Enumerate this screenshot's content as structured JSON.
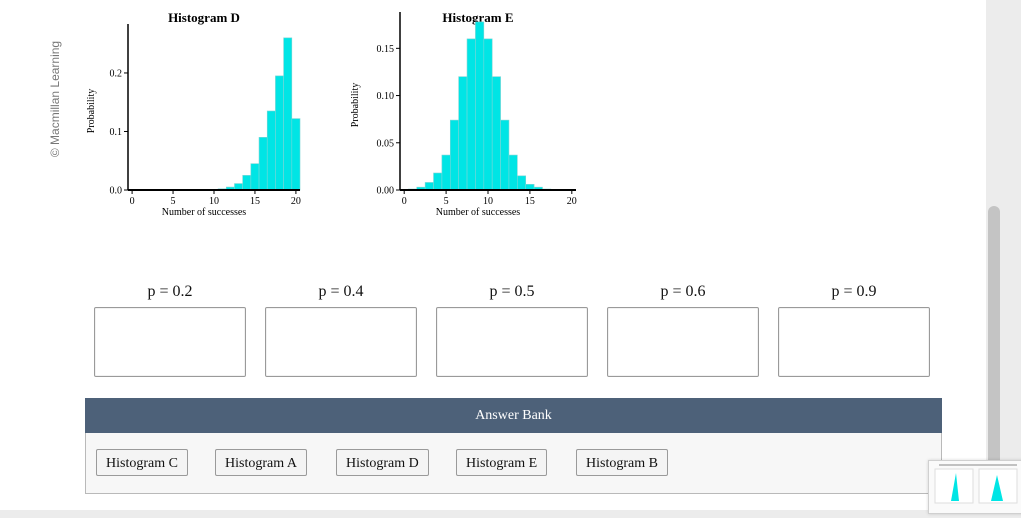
{
  "credit": "© Macmillan Learning",
  "histograms": [
    {
      "title": "Histogram D",
      "ylabel": "Probability",
      "xlabel": "Number of successes",
      "yticks": [
        "0.0",
        "0.1",
        "0.2"
      ],
      "xticks": [
        "0",
        "5",
        "10",
        "15",
        "20"
      ],
      "chart_data": {
        "type": "bar",
        "title": "Histogram D",
        "xlabel": "Number of successes",
        "ylabel": "Probability",
        "x": [
          10,
          11,
          12,
          13,
          14,
          15,
          16,
          17,
          18,
          19,
          20
        ],
        "values": [
          0.001,
          0.002,
          0.005,
          0.011,
          0.025,
          0.045,
          0.09,
          0.135,
          0.195,
          0.26,
          0.122
        ],
        "xlim": [
          -0.5,
          20.5
        ],
        "ylim": [
          0,
          0.27
        ]
      }
    },
    {
      "title": "Histogram E",
      "ylabel": "Probability",
      "xlabel": "Number of successes",
      "yticks": [
        "0.00",
        "0.05",
        "0.10",
        "0.15"
      ],
      "xticks": [
        "0",
        "5",
        "10",
        "15",
        "20"
      ],
      "chart_data": {
        "type": "bar",
        "title": "Histogram E",
        "xlabel": "Number of successes",
        "ylabel": "Probability",
        "x": [
          1,
          2,
          3,
          4,
          5,
          6,
          7,
          8,
          9,
          10,
          11,
          12,
          13,
          14,
          15,
          16,
          17
        ],
        "values": [
          0.001,
          0.003,
          0.008,
          0.018,
          0.037,
          0.074,
          0.12,
          0.16,
          0.178,
          0.16,
          0.12,
          0.074,
          0.037,
          0.015,
          0.006,
          0.003,
          0.001
        ],
        "xlim": [
          -0.5,
          20.5
        ],
        "ylim": [
          0,
          0.18
        ]
      }
    }
  ],
  "targets": [
    "p = 0.2",
    "p = 0.4",
    "p = 0.5",
    "p = 0.6",
    "p = 0.9"
  ],
  "answer_bank": {
    "title": "Answer Bank",
    "items": [
      "Histogram C",
      "Histogram A",
      "Histogram D",
      "Histogram E",
      "Histogram B"
    ]
  },
  "colors": {
    "bar_fill": "#00e5e5",
    "bar_stroke": "#7ad6d6",
    "bank_header": "#4d6179"
  }
}
